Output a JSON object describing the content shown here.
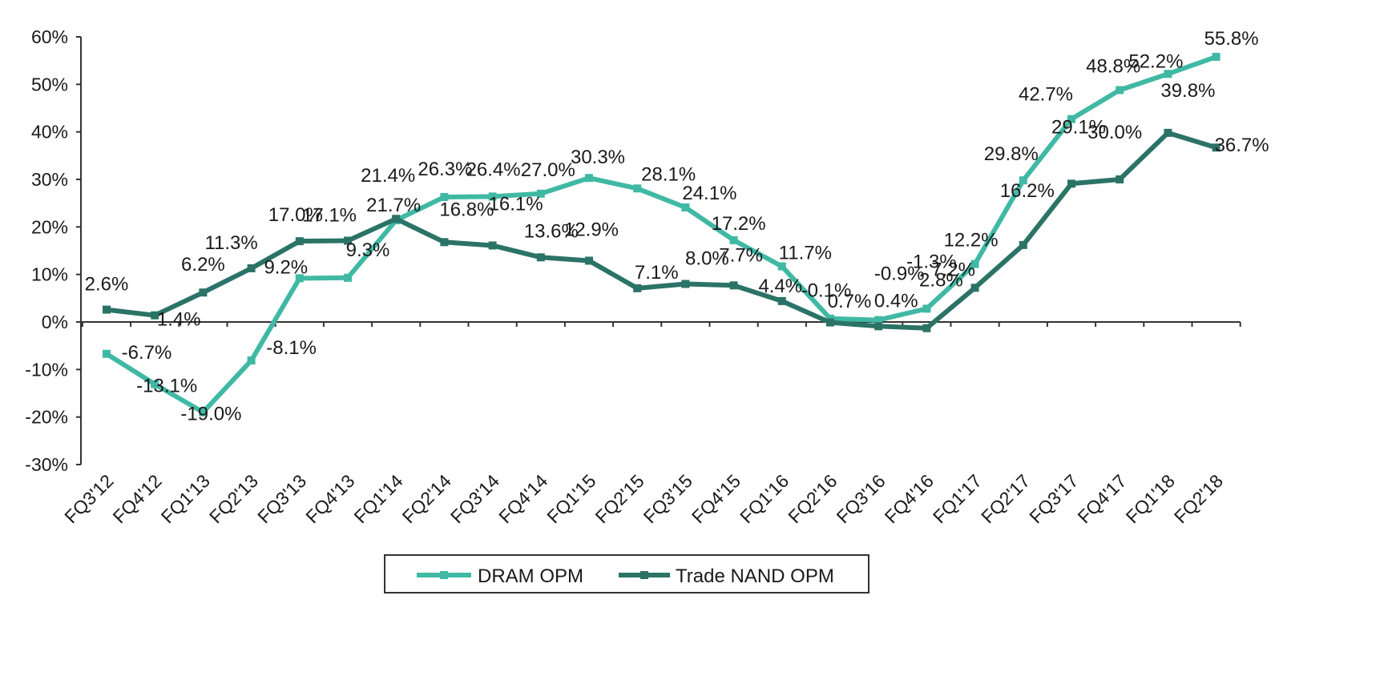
{
  "chart_data": {
    "type": "line",
    "categories": [
      "FQ3'12",
      "FQ4'12",
      "FQ1'13",
      "FQ2'13",
      "FQ3'13",
      "FQ4'13",
      "FQ1'14",
      "FQ2'14",
      "FQ3'14",
      "FQ4'14",
      "FQ1'15",
      "FQ2'15",
      "FQ3'15",
      "FQ4'15",
      "FQ1'16",
      "FQ2'16",
      "FQ3'16",
      "FQ4'16",
      "FQ1'17",
      "FQ2'17",
      "FQ3'17",
      "FQ4'17",
      "FQ1'18",
      "FQ2'18"
    ],
    "series": [
      {
        "name": "DRAM OPM",
        "color": "#40b9a4",
        "values": [
          -6.7,
          -13.1,
          -19.0,
          -8.1,
          9.2,
          9.3,
          21.4,
          26.3,
          26.4,
          27.0,
          30.3,
          28.1,
          24.1,
          17.2,
          11.7,
          0.7,
          0.4,
          2.8,
          12.2,
          29.8,
          42.7,
          48.8,
          52.2,
          55.8
        ],
        "labels": [
          "-6.7%",
          "-13.1%",
          "-19.0%",
          "-8.1%",
          "9.2%",
          "9.3%",
          "21.4%",
          "26.3%",
          "26.4%",
          "27.0%",
          "30.3%",
          "28.1%",
          "24.1%",
          "17.2%",
          "11.7%",
          "0.7%",
          "0.4%",
          "2.8%",
          "12.2%",
          "29.8%",
          "42.7%",
          "48.8%",
          "52.2%",
          "55.8%"
        ]
      },
      {
        "name": "Trade NAND OPM",
        "color": "#2b7366",
        "values": [
          2.6,
          1.4,
          6.2,
          11.3,
          17.0,
          17.1,
          21.7,
          16.8,
          16.1,
          13.6,
          12.9,
          7.1,
          8.0,
          7.7,
          4.4,
          -0.1,
          -0.9,
          -1.3,
          7.2,
          16.2,
          29.1,
          30.0,
          39.8,
          36.7
        ],
        "labels": [
          "2.6%",
          "1.4%",
          "6.2%",
          "11.3%",
          "17.0%",
          "17.1%",
          "21.7%",
          "16.8%",
          "16.1%",
          "13.6%",
          "12.9%",
          "7.1%",
          "8.0%",
          "7.7%",
          "4.4%",
          "-0.1%",
          "-0.9%",
          "-1.3%",
          "7.2%",
          "16.2%",
          "29.1%",
          "30.0%",
          "39.8%",
          "36.7%"
        ]
      }
    ],
    "y_ticks": [
      "-30%",
      "-20%",
      "-10%",
      "0%",
      "10%",
      "20%",
      "30%",
      "40%",
      "50%",
      "60%"
    ],
    "ylim": [
      -30,
      60
    ],
    "legend_position": "bottom-center",
    "grid": false
  }
}
